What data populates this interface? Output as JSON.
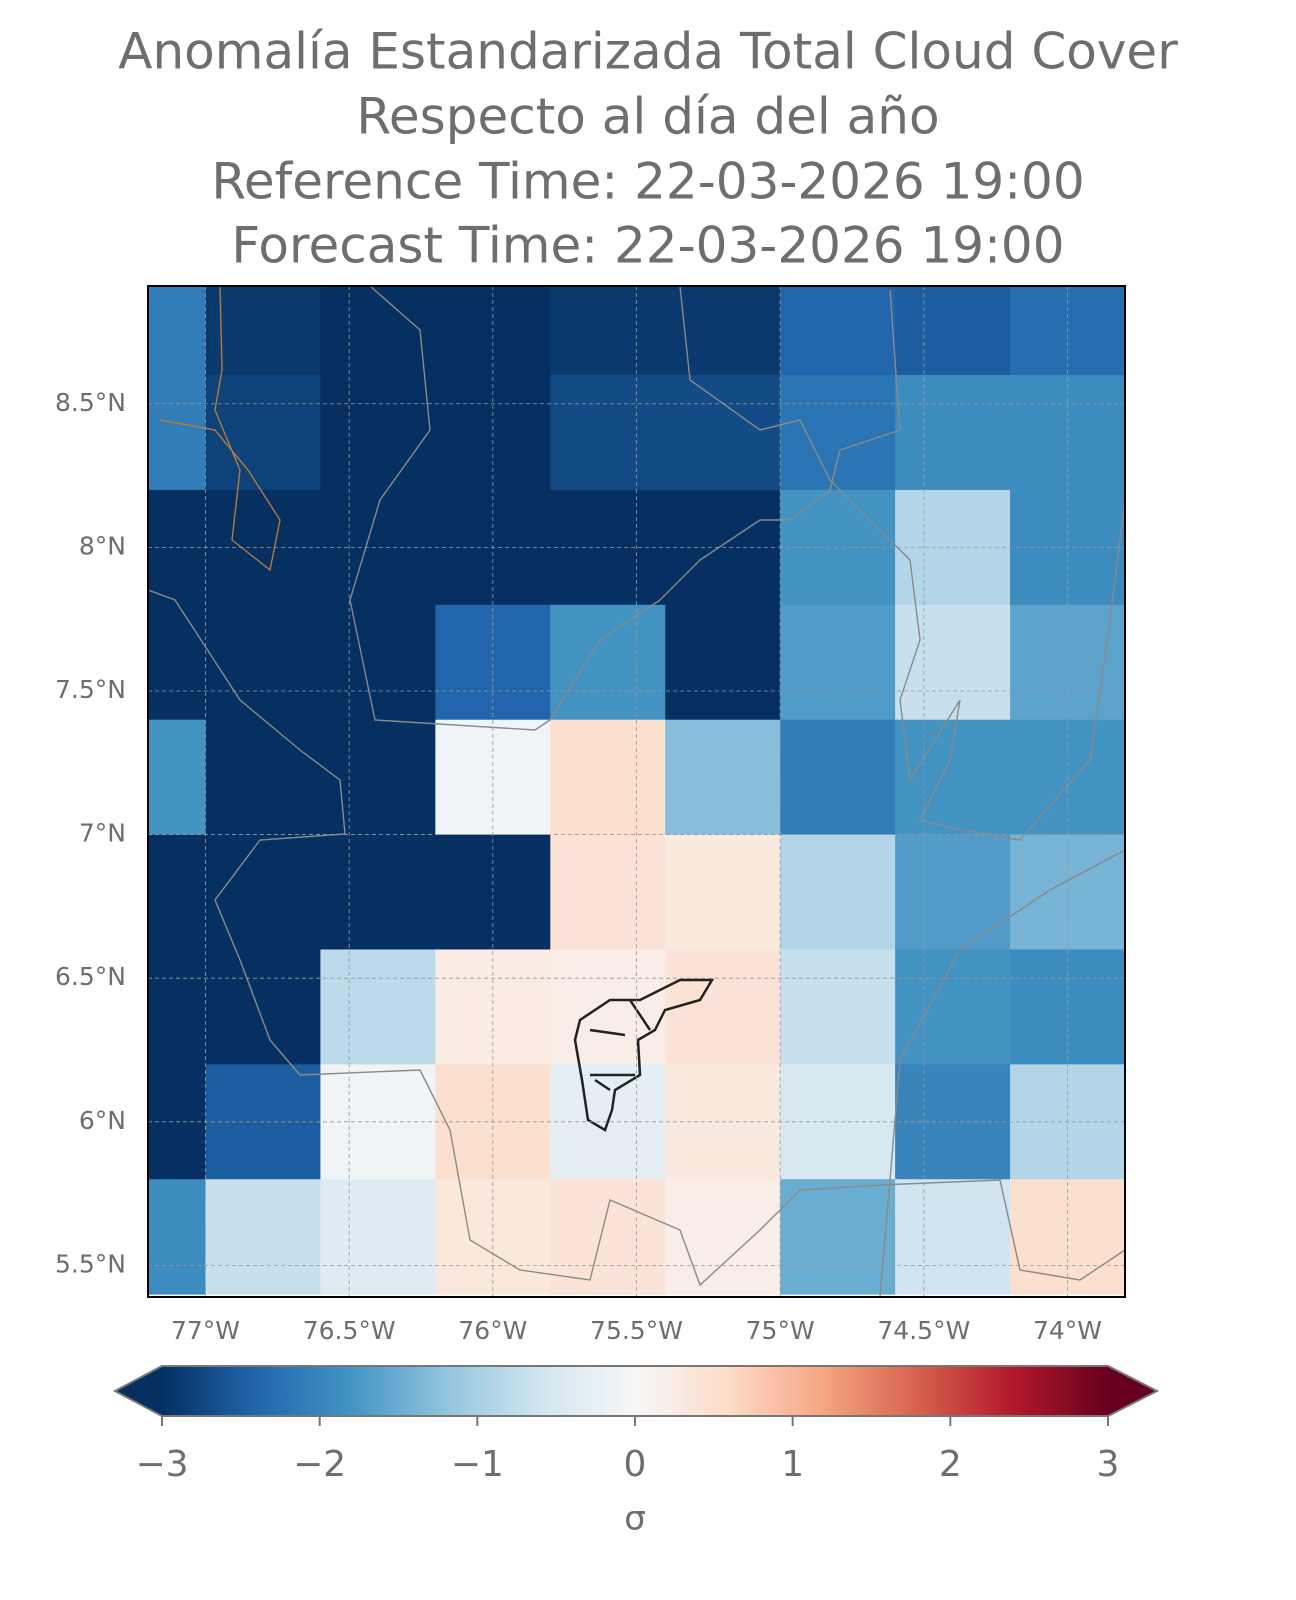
{
  "chart_data": {
    "type": "heatmap",
    "title": "Anomalía Estandarizada Total Cloud Cover",
    "subtitle": "Respecto al día del año",
    "reference_time": "Reference Time: 22-03-2026 19:00",
    "forecast_time": "Forecast Time: 22-03-2026 19:00",
    "x_edges": [
      -77.4,
      -77.0,
      -76.6,
      -76.2,
      -75.8,
      -75.4,
      -75.0,
      -74.6,
      -74.2,
      -73.8
    ],
    "y_edges": [
      9.0,
      8.6,
      8.2,
      7.8,
      7.4,
      7.0,
      6.6,
      6.2,
      5.8,
      5.4
    ],
    "values": [
      [
        -2.1,
        -2.9,
        -3.0,
        -3.0,
        -2.9,
        -2.9,
        -2.4,
        -2.5,
        -2.3
      ],
      [
        -2.1,
        -2.8,
        -3.0,
        -3.0,
        -2.7,
        -2.7,
        -2.2,
        -1.9,
        -1.9
      ],
      [
        -3.0,
        -3.0,
        -3.0,
        -3.0,
        -3.0,
        -3.0,
        -1.8,
        -0.9,
        -1.9
      ],
      [
        -3.0,
        -3.0,
        -3.0,
        -2.4,
        -1.8,
        -3.0,
        -1.7,
        -0.7,
        -1.6
      ],
      [
        -1.8,
        -3.0,
        -3.0,
        -0.1,
        0.5,
        -1.3,
        -2.1,
        -1.8,
        -1.8
      ],
      [
        -3.0,
        -3.0,
        -3.0,
        -3.0,
        0.4,
        0.3,
        -0.9,
        -1.7,
        -1.4
      ],
      [
        -3.0,
        -3.0,
        -0.8,
        0.25,
        0.2,
        0.4,
        -0.7,
        -1.8,
        -1.9
      ],
      [
        -3.0,
        -2.5,
        -0.1,
        0.5,
        -0.3,
        0.3,
        -0.5,
        -2.0,
        -0.9
      ],
      [
        -1.9,
        -0.7,
        -0.4,
        0.35,
        0.4,
        0.2,
        -1.5,
        -0.6,
        0.5
      ]
    ],
    "xlim": [
      -77.2,
      -73.8
    ],
    "ylim": [
      5.39,
      8.91
    ],
    "xticks": [
      {
        "value": -77,
        "label": "77°W"
      },
      {
        "value": -76.5,
        "label": "76.5°W"
      },
      {
        "value": -76,
        "label": "76°W"
      },
      {
        "value": -75.5,
        "label": "75.5°W"
      },
      {
        "value": -75,
        "label": "75°W"
      },
      {
        "value": -74.5,
        "label": "74.5°W"
      },
      {
        "value": -74,
        "label": "74°W"
      }
    ],
    "yticks": [
      {
        "value": 5.5,
        "label": "5.5°N"
      },
      {
        "value": 6,
        "label": "6°N"
      },
      {
        "value": 6.5,
        "label": "6.5°N"
      },
      {
        "value": 7,
        "label": "7°N"
      },
      {
        "value": 7.5,
        "label": "7.5°N"
      },
      {
        "value": 8,
        "label": "8°N"
      },
      {
        "value": 8.5,
        "label": "8.5°N"
      }
    ],
    "grid": true,
    "colormap": "RdBu_r",
    "clim": [
      -3,
      3
    ],
    "cbar_ticks": [
      {
        "value": -3,
        "label": "−3"
      },
      {
        "value": -2,
        "label": "−2"
      },
      {
        "value": -1,
        "label": "−1"
      },
      0,
      1,
      2,
      3
    ],
    "cbar_label": "σ"
  }
}
